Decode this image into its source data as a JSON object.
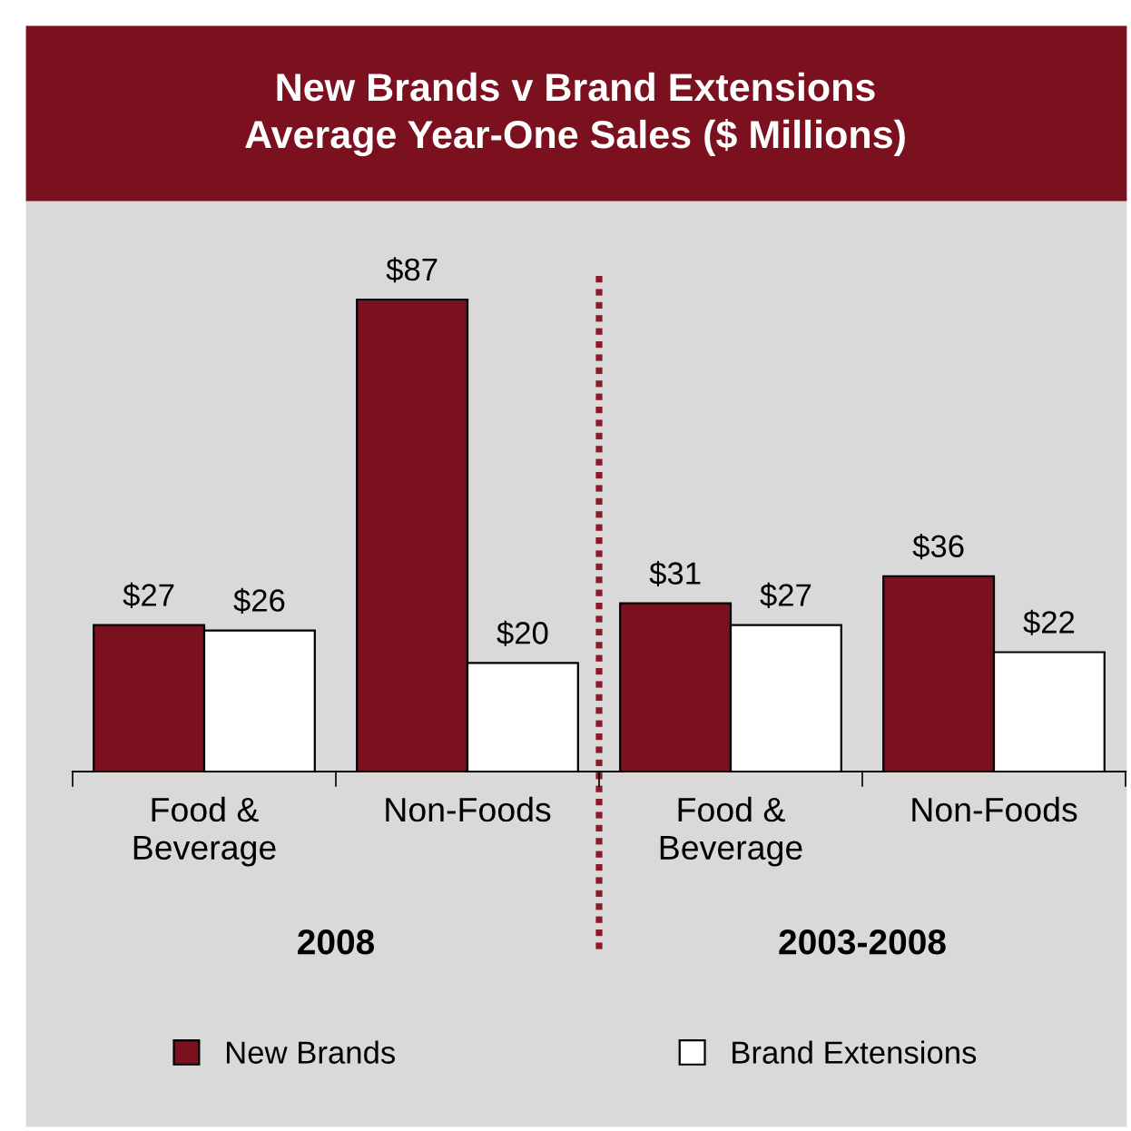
{
  "chart_data": {
    "type": "bar",
    "title": "New Brands v Brand Extensions\nAverage Year-One Sales ($ Millions)",
    "categories": [
      "Food &\nBeverage",
      "Non-Foods",
      "Food &\nBeverage",
      "Non-Foods"
    ],
    "series": [
      {
        "name": "New Brands",
        "color": "#7b111f",
        "values": [
          27,
          87,
          31,
          36
        ],
        "value_labels": [
          "$27",
          "$87",
          "$31",
          "$36"
        ]
      },
      {
        "name": "Brand Extensions",
        "color": "#ffffff",
        "values": [
          26,
          20,
          27,
          22
        ],
        "value_labels": [
          "$26",
          "$20",
          "$27",
          "$22"
        ]
      }
    ],
    "tick_labels": "x",
    "legend": "bottom",
    "annotations": [
      "2008",
      "2003-2008"
    ]
  }
}
